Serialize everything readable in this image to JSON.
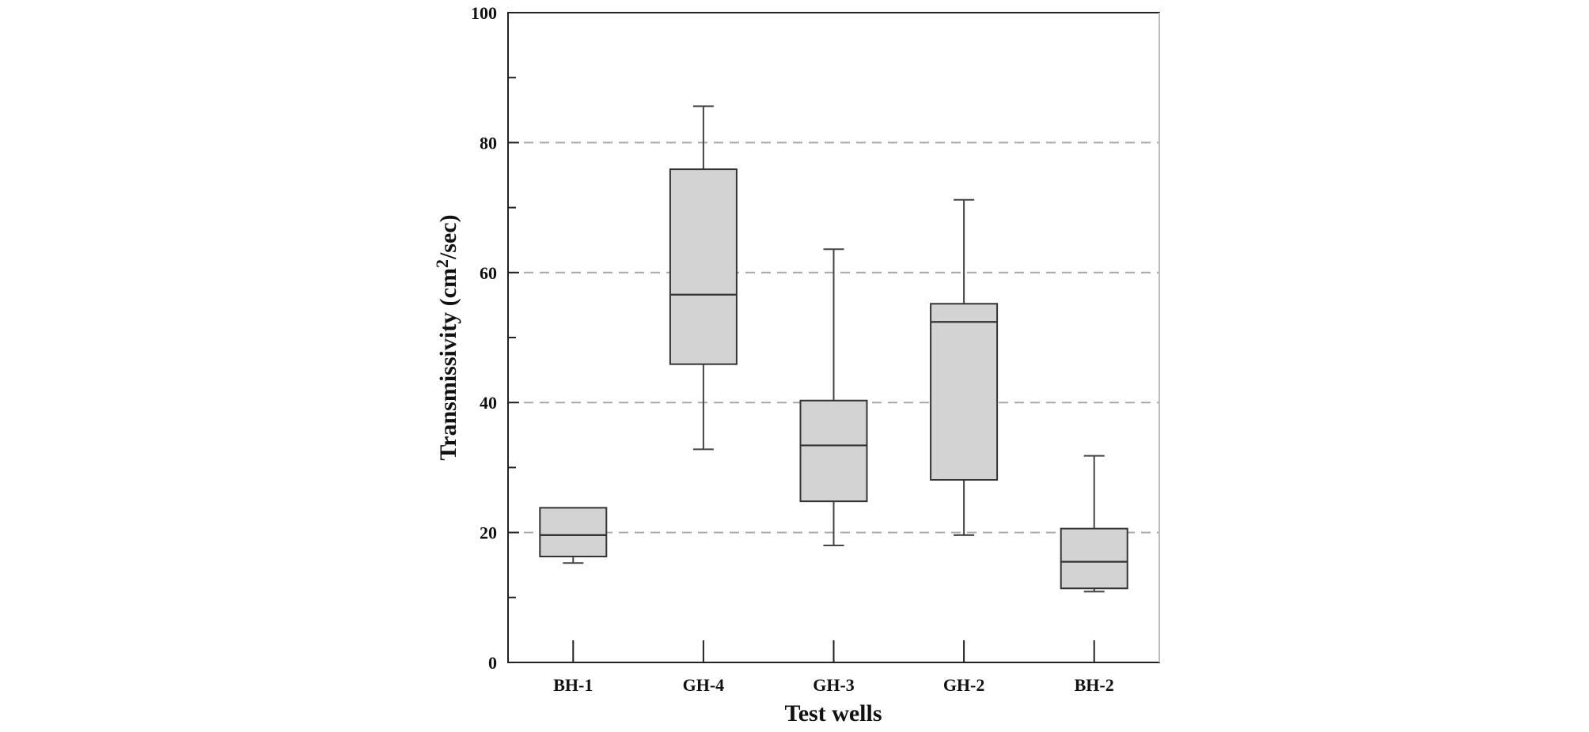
{
  "chart_data": {
    "type": "boxplot",
    "title": "",
    "xlabel": "Test wells",
    "ylabel_main": "Transmissivity (cm",
    "ylabel_sup": "2",
    "ylabel_end": "/sec)",
    "ylim": [
      0,
      100
    ],
    "yticks_major": [
      0,
      20,
      40,
      60,
      80,
      100
    ],
    "yticks_minor": [
      10,
      30,
      50,
      70,
      90
    ],
    "ytick_labels": [
      "0",
      "20",
      "40",
      "60",
      "80",
      "100"
    ],
    "grid_lines": [
      20,
      40,
      60,
      80
    ],
    "categories": [
      "BH-1",
      "GH-4",
      "GH-3",
      "GH-2",
      "BH-2"
    ],
    "boxes": [
      {
        "label": "BH-1",
        "min": 15.3,
        "q1": 16.3,
        "median": 19.6,
        "q3": 23.8,
        "max": 23.8
      },
      {
        "label": "GH-4",
        "min": 32.8,
        "q1": 45.9,
        "median": 56.6,
        "q3": 75.9,
        "max": 85.6
      },
      {
        "label": "GH-3",
        "min": 18.0,
        "q1": 24.8,
        "median": 33.4,
        "q3": 40.3,
        "max": 63.6
      },
      {
        "label": "GH-2",
        "min": 19.6,
        "q1": 28.1,
        "median": 52.4,
        "q3": 55.2,
        "max": 71.2
      },
      {
        "label": "BH-2",
        "min": 10.9,
        "q1": 11.4,
        "median": 15.5,
        "q3": 20.6,
        "max": 31.8
      }
    ]
  }
}
